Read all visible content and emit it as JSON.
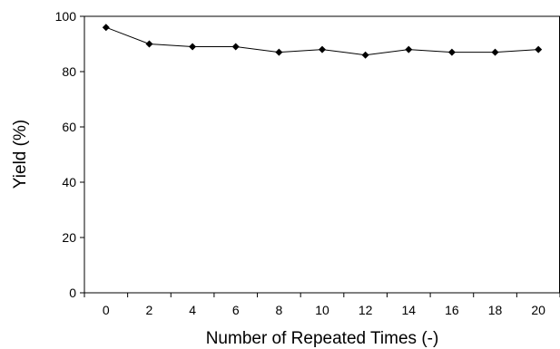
{
  "chart_data": {
    "type": "line",
    "title": "",
    "xlabel": "Number of Repeated Times (-)",
    "ylabel": "Yield (%)",
    "x": [
      0,
      2,
      4,
      6,
      8,
      10,
      12,
      14,
      16,
      18,
      20
    ],
    "x_tick_labels": [
      "0",
      "2",
      "4",
      "6",
      "8",
      "10",
      "12",
      "14",
      "16",
      "18",
      "20"
    ],
    "y_tick_labels": [
      "0",
      "20",
      "40",
      "60",
      "80",
      "100"
    ],
    "series": [
      {
        "values": [
          96,
          90,
          89,
          89,
          87,
          88,
          86,
          88,
          87,
          87,
          88
        ],
        "marker": "diamond",
        "color": "#000000"
      }
    ],
    "xlim": [
      0,
      20
    ],
    "ylim": [
      0,
      100
    ],
    "grid": false,
    "legend": "none"
  }
}
